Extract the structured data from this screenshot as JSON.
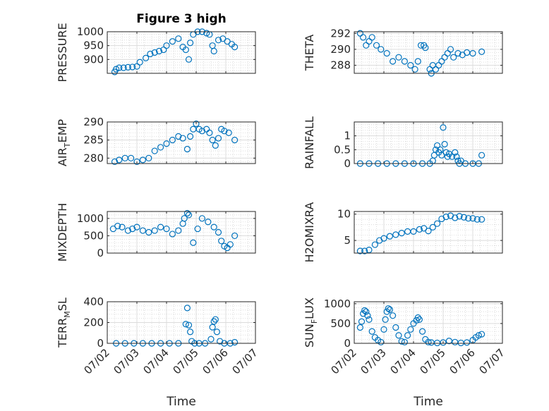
{
  "figure": {
    "title": "Figure 3 high",
    "xlabel": "Time",
    "x_tick_labels": [
      "07/02",
      "07/03",
      "07/04",
      "07/05",
      "07/06",
      "07/07"
    ],
    "marker_color": "#0072bd",
    "grid_color": "#dcdcdc"
  },
  "chart_data": [
    {
      "type": "scatter",
      "name": "PRESSURE",
      "ylabel_parts": [
        "PRESSURE"
      ],
      "x": [
        2.25,
        2.3,
        2.4,
        2.55,
        2.7,
        2.85,
        3.0,
        3.1,
        3.3,
        3.45,
        3.6,
        3.75,
        3.9,
        4.0,
        4.2,
        4.4,
        4.55,
        4.65,
        4.75,
        4.8,
        4.9,
        5.05,
        5.2,
        5.35,
        5.45,
        5.55,
        5.6,
        5.75,
        5.9,
        6.05,
        6.2,
        6.3
      ],
      "y": [
        855,
        865,
        870,
        870,
        872,
        873,
        875,
        890,
        905,
        920,
        925,
        930,
        935,
        950,
        965,
        975,
        945,
        935,
        900,
        960,
        990,
        1000,
        1000,
        995,
        990,
        950,
        930,
        970,
        975,
        965,
        955,
        945
      ],
      "yticks": [
        900,
        950,
        1000
      ],
      "ytick_labels": [
        "900",
        "950",
        "1000"
      ],
      "ylim": [
        850,
        1000
      ]
    },
    {
      "type": "scatter",
      "name": "AIR_TEMP",
      "ylabel_parts": [
        "AIR",
        "T",
        "EMP"
      ],
      "x": [
        2.25,
        2.4,
        2.6,
        2.8,
        3.0,
        3.2,
        3.4,
        3.6,
        3.8,
        4.0,
        4.2,
        4.4,
        4.55,
        4.7,
        4.8,
        4.9,
        5.0,
        5.1,
        5.2,
        5.35,
        5.45,
        5.55,
        5.65,
        5.75,
        5.85,
        5.95,
        6.1,
        6.3
      ],
      "y": [
        279,
        279.5,
        280,
        280,
        279,
        279.5,
        280,
        282,
        283,
        284,
        285,
        286,
        285.5,
        282.5,
        286,
        288,
        289.5,
        288,
        287.5,
        288,
        287,
        285,
        283.5,
        285.5,
        288,
        287.5,
        287,
        285
      ],
      "yticks": [
        280,
        285,
        290
      ],
      "ytick_labels": [
        "280",
        "285",
        "290"
      ],
      "ylim": [
        278.5,
        290
      ]
    },
    {
      "type": "scatter",
      "name": "MIXDEPTH",
      "ylabel_parts": [
        "MIXDEPTH"
      ],
      "x": [
        2.2,
        2.35,
        2.5,
        2.7,
        2.85,
        3.0,
        3.2,
        3.4,
        3.6,
        3.8,
        4.0,
        4.2,
        4.4,
        4.55,
        4.6,
        4.7,
        4.75,
        4.9,
        5.05,
        5.2,
        5.4,
        5.6,
        5.75,
        5.85,
        5.95,
        6.05,
        6.15,
        6.3
      ],
      "y": [
        700,
        780,
        750,
        650,
        700,
        750,
        650,
        600,
        650,
        750,
        700,
        550,
        650,
        850,
        1000,
        1150,
        1100,
        300,
        700,
        1000,
        900,
        750,
        600,
        350,
        200,
        150,
        250,
        500
      ],
      "yticks": [
        0,
        500,
        1000
      ],
      "ytick_labels": [
        "0",
        "500",
        "1000"
      ],
      "ylim": [
        0,
        1200
      ]
    },
    {
      "type": "scatter",
      "name": "TERR_MSL",
      "ylabel_parts": [
        "TERR",
        "M",
        "SL"
      ],
      "x": [
        2.3,
        2.6,
        2.9,
        3.2,
        3.5,
        3.8,
        4.1,
        4.4,
        4.65,
        4.7,
        4.75,
        4.8,
        4.85,
        4.95,
        5.1,
        5.3,
        5.5,
        5.55,
        5.6,
        5.65,
        5.7,
        5.8,
        5.95,
        6.15,
        6.3
      ],
      "y": [
        0,
        0,
        0,
        0,
        0,
        0,
        0,
        0,
        185,
        340,
        175,
        110,
        20,
        0,
        0,
        0,
        40,
        155,
        210,
        230,
        110,
        20,
        0,
        0,
        10
      ],
      "yticks": [
        0,
        200,
        400
      ],
      "ytick_labels": [
        "0",
        "200",
        "400"
      ],
      "ylim": [
        0,
        400
      ]
    },
    {
      "type": "scatter",
      "name": "THETA",
      "ylabel_parts": [
        "THETA"
      ],
      "x": [
        2.2,
        2.3,
        2.4,
        2.5,
        2.6,
        2.75,
        2.9,
        3.1,
        3.3,
        3.5,
        3.7,
        3.9,
        4.05,
        4.15,
        4.25,
        4.35,
        4.4,
        4.55,
        4.6,
        4.65,
        4.75,
        4.85,
        4.95,
        5.05,
        5.15,
        5.25,
        5.35,
        5.5,
        5.65,
        5.8,
        6.0,
        6.3
      ],
      "y": [
        292,
        291.5,
        290.5,
        291,
        291.5,
        290.5,
        290,
        289.5,
        288.5,
        289,
        288.5,
        288,
        287.5,
        288.5,
        290.5,
        290.5,
        290.2,
        287.5,
        287,
        288,
        287.5,
        288,
        288.5,
        289,
        289.5,
        290,
        289,
        289.5,
        289.3,
        289.6,
        289.5,
        289.7
      ],
      "yticks": [
        288,
        290,
        292
      ],
      "ytick_labels": [
        "288",
        "290",
        "292"
      ],
      "ylim": [
        287,
        292.2
      ]
    },
    {
      "type": "scatter",
      "name": "RAINFALL",
      "ylabel_parts": [
        "RAINFALL"
      ],
      "x": [
        2.2,
        2.5,
        2.8,
        3.1,
        3.4,
        3.7,
        4.0,
        4.3,
        4.55,
        4.65,
        4.7,
        4.75,
        4.8,
        4.85,
        4.9,
        4.95,
        5.0,
        5.05,
        5.1,
        5.15,
        5.2,
        5.3,
        5.4,
        5.45,
        5.5,
        5.55,
        5.6,
        5.75,
        6.0,
        6.2,
        6.3
      ],
      "y": [
        0,
        0,
        0,
        0,
        0,
        0,
        0,
        0,
        0,
        0.1,
        0.3,
        0.5,
        0.65,
        0.4,
        0.5,
        0.3,
        1.3,
        0.7,
        0.4,
        0.25,
        0.35,
        0.25,
        0.4,
        0.25,
        0.1,
        0,
        0.1,
        0,
        0,
        0,
        0.3
      ],
      "yticks": [
        0,
        0.5,
        1
      ],
      "ytick_labels": [
        "0",
        "0.5",
        "1"
      ],
      "ylim": [
        0,
        1.5
      ]
    },
    {
      "type": "scatter",
      "name": "H2OMIXRA",
      "ylabel_parts": [
        "H2OMIXRA"
      ],
      "x": [
        2.2,
        2.35,
        2.5,
        2.7,
        2.85,
        3.0,
        3.2,
        3.4,
        3.6,
        3.8,
        4.0,
        4.2,
        4.35,
        4.5,
        4.65,
        4.8,
        4.95,
        5.1,
        5.25,
        5.4,
        5.55,
        5.7,
        5.85,
        6.0,
        6.15,
        6.3
      ],
      "y": [
        3,
        3,
        3.2,
        4.2,
        5,
        5.4,
        5.8,
        6.1,
        6.4,
        6.7,
        6.7,
        7.1,
        7.3,
        6.8,
        7.5,
        8.2,
        9.1,
        9.5,
        9.7,
        9.3,
        9.6,
        9.4,
        9.2,
        9.2,
        9,
        9
      ],
      "yticks": [
        5,
        10
      ],
      "ytick_labels": [
        "5",
        "10"
      ],
      "ylim": [
        2.6,
        10.5
      ]
    },
    {
      "type": "scatter",
      "name": "SUN_FLUX",
      "ylabel_parts": [
        "SUN",
        "F",
        "LUX"
      ],
      "x": [
        2.2,
        2.25,
        2.3,
        2.35,
        2.4,
        2.45,
        2.5,
        2.6,
        2.7,
        2.8,
        2.9,
        3.0,
        3.05,
        3.1,
        3.15,
        3.2,
        3.3,
        3.4,
        3.5,
        3.6,
        3.7,
        3.8,
        3.9,
        4.0,
        4.1,
        4.15,
        4.2,
        4.3,
        4.4,
        4.5,
        4.6,
        4.8,
        5.0,
        5.2,
        5.4,
        5.6,
        5.8,
        6.0,
        6.1,
        6.2,
        6.3
      ],
      "y": [
        400,
        550,
        750,
        830,
        800,
        700,
        600,
        300,
        150,
        80,
        30,
        350,
        600,
        800,
        880,
        850,
        700,
        400,
        200,
        50,
        30,
        200,
        350,
        500,
        580,
        650,
        600,
        300,
        100,
        30,
        20,
        10,
        20,
        60,
        30,
        10,
        20,
        80,
        150,
        200,
        230
      ],
      "yticks": [
        0,
        500,
        1000
      ],
      "ytick_labels": [
        "0",
        "500",
        "1000"
      ],
      "ylim": [
        0,
        1050
      ]
    }
  ]
}
